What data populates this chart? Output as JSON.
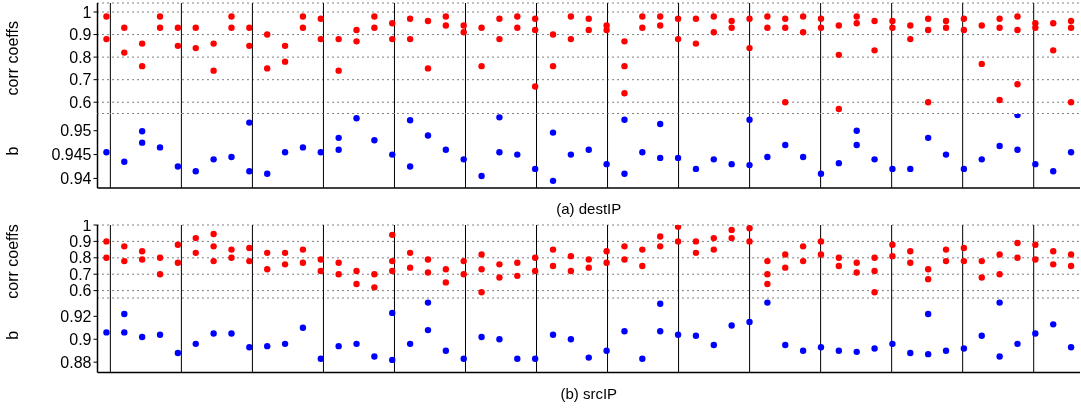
{
  "chart_data": [
    {
      "type": "scatter",
      "ylabel": "corr coeffs",
      "categories": [
        null,
        null,
        null,
        null,
        null,
        null,
        null,
        null,
        null,
        null,
        null,
        null,
        null,
        null,
        null,
        null,
        null,
        null,
        null,
        null,
        null,
        null,
        null,
        null,
        null,
        null,
        null,
        null,
        null,
        null,
        null,
        null,
        null,
        null,
        null,
        null,
        null,
        null,
        null,
        null,
        null,
        null,
        null,
        null,
        null,
        null,
        null,
        null,
        null,
        null,
        null,
        null,
        null,
        null,
        null
      ],
      "ylim": [
        0.55,
        1.04
      ],
      "yticks": [
        0.6,
        0.7,
        0.8,
        0.9,
        1
      ],
      "grid": true,
      "marker": "circle",
      "series": [
        {
          "color": "#ff0000",
          "values": [
            0.98,
            0.93,
            0.86,
            0.98,
            0.93,
            0.93,
            0.86,
            0.98,
            0.93,
            0.9,
            0.85,
            0.98,
            0.97,
            0.88,
            0.92,
            0.98,
            0.95,
            0.97,
            0.96,
            0.98,
            0.94,
            0.93,
            0.97,
            0.98,
            0.97,
            0.9,
            0.98,
            0.97,
            0.94,
            0.87,
            0.98,
            0.98,
            0.97,
            0.97,
            0.98,
            0.96,
            0.97,
            0.98,
            0.97,
            0.98,
            0.97,
            0.94,
            0.98,
            0.96,
            0.96,
            0.94,
            0.97,
            0.96,
            0.97,
            0.94,
            0.97,
            0.98,
            0.95,
            0.95,
            0.96
          ]
        },
        {
          "color": "#ff0000",
          "values": [
            0.88,
            0.82,
            0.76,
            0.93,
            0.85,
            0.84,
            0.74,
            0.93,
            0.85,
            0.75,
            0.78,
            0.93,
            0.88,
            0.74,
            0.87,
            0.93,
            0.88,
            0.88,
            0.75,
            0.94,
            0.91,
            0.76,
            0.88,
            0.93,
            0.92,
            0.76,
            0.88,
            0.92,
            0.92,
            0.76,
            0.93,
            0.94,
            0.88,
            0.86,
            0.91,
            0.93,
            0.84,
            0.93,
            0.93,
            0.91,
            0.93,
            0.81,
            0.95,
            0.83,
            0.93,
            0.88,
            0.92,
            0.93,
            0.92,
            0.77,
            0.93,
            0.92,
            0.93,
            0.83,
            0.93
          ]
        },
        {
          "color": "#ff0000",
          "values": [
            null,
            null,
            null,
            null,
            null,
            null,
            null,
            null,
            null,
            null,
            null,
            null,
            null,
            null,
            null,
            null,
            null,
            null,
            null,
            null,
            null,
            null,
            null,
            null,
            0.67,
            null,
            null,
            null,
            null,
            0.64,
            null,
            null,
            null,
            null,
            null,
            null,
            null,
            null,
            0.6,
            null,
            null,
            0.57,
            null,
            null,
            null,
            null,
            0.6,
            null,
            null,
            null,
            0.61,
            0.68,
            null,
            null,
            0.6
          ]
        }
      ]
    },
    {
      "type": "scatter",
      "ylabel": "b",
      "xlabel": "(a) destIP",
      "categories": [
        null,
        null,
        null,
        null,
        null,
        null,
        null,
        null,
        null,
        null,
        null,
        null,
        null,
        null,
        null,
        null,
        null,
        null,
        null,
        null,
        null,
        null,
        null,
        null,
        null,
        null,
        null,
        null,
        null,
        null,
        null,
        null,
        null,
        null,
        null,
        null,
        null,
        null,
        null,
        null,
        null,
        null,
        null,
        null,
        null,
        null,
        null,
        null,
        null,
        null,
        null,
        null,
        null,
        null,
        null
      ],
      "ylim": [
        0.938,
        0.9535
      ],
      "yticks": [
        0.94,
        0.945,
        0.95
      ],
      "grid": "x",
      "marker": "circle",
      "series": [
        {
          "color": "#0000ff",
          "values": [
            0.9455,
            0.9435,
            0.9475,
            0.9465,
            0.9425,
            0.9415,
            0.944,
            0.9445,
            0.9415,
            0.941,
            0.9455,
            0.9465,
            0.9455,
            0.946,
            0.9526,
            0.948,
            0.945,
            0.9425,
            0.949,
            0.946,
            0.944,
            0.9405,
            0.9455,
            0.945,
            0.942,
            0.9395,
            0.945,
            0.946,
            0.943,
            0.941,
            0.9455,
            0.9443,
            0.9443,
            0.942,
            0.944,
            0.943,
            0.9428,
            0.9445,
            0.947,
            0.9445,
            0.941,
            0.9432,
            0.947,
            0.944,
            0.942,
            0.942,
            0.9485,
            0.945,
            0.942,
            0.944,
            0.9468,
            0.946,
            0.943,
            0.9415,
            0.9455
          ]
        },
        {
          "color": "#0000ff",
          "values": [
            null,
            null,
            0.9499,
            null,
            null,
            null,
            null,
            null,
            0.9517,
            null,
            null,
            null,
            null,
            0.9485,
            null,
            null,
            null,
            0.9522,
            null,
            null,
            null,
            null,
            0.9528,
            null,
            null,
            0.9496,
            null,
            null,
            null,
            0.9523,
            null,
            0.9514,
            null,
            null,
            null,
            null,
            0.9523,
            null,
            null,
            null,
            null,
            null,
            0.95,
            null,
            null,
            null,
            null,
            null,
            null,
            null,
            null,
            0.9533,
            null,
            null,
            null
          ]
        }
      ]
    },
    {
      "type": "scatter",
      "ylabel": "corr coeffs",
      "categories": [
        null,
        null,
        null,
        null,
        null,
        null,
        null,
        null,
        null,
        null,
        null,
        null,
        null,
        null,
        null,
        null,
        null,
        null,
        null,
        null,
        null,
        null,
        null,
        null,
        null,
        null,
        null,
        null,
        null,
        null,
        null,
        null,
        null,
        null,
        null,
        null,
        null,
        null,
        null,
        null,
        null,
        null,
        null,
        null,
        null,
        null,
        null,
        null,
        null,
        null,
        null,
        null,
        null,
        null,
        null
      ],
      "ylim": [
        0.555,
        1
      ],
      "yticks": [
        0.6,
        0.7,
        0.8,
        0.9,
        1
      ],
      "grid": true,
      "marker": "circle",
      "series": [
        {
          "color": "#ff0000",
          "values": [
            0.9,
            0.87,
            0.84,
            0.8,
            0.88,
            0.92,
            0.87,
            0.85,
            0.86,
            0.83,
            0.83,
            0.85,
            0.79,
            0.77,
            0.72,
            0.7,
            0.78,
            0.83,
            0.79,
            0.73,
            0.78,
            0.82,
            0.76,
            0.77,
            0.8,
            0.85,
            0.81,
            0.79,
            0.84,
            0.87,
            0.85,
            0.93,
            0.99,
            0.9,
            0.92,
            0.97,
            0.98,
            0.78,
            0.82,
            0.87,
            0.9,
            0.8,
            0.77,
            0.8,
            0.88,
            0.84,
            0.73,
            0.85,
            0.86,
            0.78,
            0.82,
            0.89,
            0.88,
            0.84,
            0.82
          ]
        },
        {
          "color": "#ff0000",
          "values": [
            0.8,
            0.78,
            0.79,
            0.7,
            0.77,
            0.83,
            0.78,
            0.8,
            0.78,
            0.73,
            0.76,
            0.77,
            0.72,
            0.7,
            0.64,
            0.62,
            0.72,
            0.74,
            0.71,
            0.65,
            0.7,
            0.73,
            0.68,
            0.69,
            0.72,
            0.75,
            0.72,
            0.74,
            0.77,
            0.79,
            0.75,
            0.87,
            0.9,
            0.83,
            0.85,
            0.92,
            0.9,
            0.7,
            0.74,
            0.78,
            0.82,
            0.75,
            0.71,
            0.72,
            0.81,
            0.77,
            0.67,
            0.78,
            0.78,
            0.68,
            0.7,
            0.8,
            0.79,
            0.76,
            0.75
          ]
        },
        {
          "color": "#ff0000",
          "values": [
            null,
            null,
            null,
            null,
            null,
            null,
            0.945,
            null,
            null,
            null,
            null,
            null,
            null,
            null,
            null,
            null,
            0.94,
            null,
            null,
            null,
            null,
            0.59,
            null,
            null,
            null,
            null,
            null,
            null,
            null,
            null,
            null,
            null,
            null,
            null,
            null,
            null,
            null,
            0.64,
            null,
            null,
            null,
            null,
            null,
            0.59,
            null,
            null,
            null,
            null,
            null,
            null,
            null,
            null,
            null,
            null,
            null
          ]
        }
      ]
    },
    {
      "type": "scatter",
      "ylabel": "b",
      "xlabel": "(b) srcIP",
      "categories": [
        null,
        null,
        null,
        null,
        null,
        null,
        null,
        null,
        null,
        null,
        null,
        null,
        null,
        null,
        null,
        null,
        null,
        null,
        null,
        null,
        null,
        null,
        null,
        null,
        null,
        null,
        null,
        null,
        null,
        null,
        null,
        null,
        null,
        null,
        null,
        null,
        null,
        null,
        null,
        null,
        null,
        null,
        null,
        null,
        null,
        null,
        null,
        null,
        null,
        null,
        null,
        null,
        null,
        null,
        null
      ],
      "ylim": [
        0.871,
        0.936
      ],
      "yticks": [
        0.88,
        0.9,
        0.92
      ],
      "grid": "x",
      "marker": "circle",
      "series": [
        {
          "color": "#0000ff",
          "values": [
            0.906,
            0.906,
            0.902,
            0.904,
            0.888,
            0.896,
            0.905,
            0.905,
            0.893,
            0.894,
            0.896,
            0.91,
            0.883,
            0.894,
            0.896,
            0.885,
            0.882,
            0.896,
            0.908,
            0.89,
            0.883,
            0.902,
            0.9,
            0.883,
            0.883,
            0.904,
            0.9,
            0.884,
            0.89,
            0.907,
            0.883,
            0.907,
            0.904,
            0.903,
            0.895,
            0.912,
            0.915,
            0.932,
            0.895,
            0.89,
            0.893,
            0.89,
            0.889,
            0.892,
            0.896,
            0.888,
            0.887,
            0.89,
            0.892,
            0.903,
            0.885,
            0.896,
            0.905,
            0.913,
            0.893
          ]
        },
        {
          "color": "#0000ff",
          "values": [
            null,
            0.922,
            null,
            null,
            null,
            null,
            null,
            null,
            null,
            null,
            null,
            null,
            null,
            null,
            null,
            null,
            0.923,
            null,
            0.932,
            null,
            null,
            null,
            null,
            null,
            null,
            null,
            null,
            null,
            null,
            null,
            null,
            0.931,
            null,
            null,
            null,
            null,
            null,
            null,
            null,
            null,
            null,
            null,
            null,
            null,
            null,
            null,
            0.922,
            null,
            null,
            null,
            0.932,
            null,
            null,
            null,
            null
          ]
        }
      ]
    }
  ]
}
